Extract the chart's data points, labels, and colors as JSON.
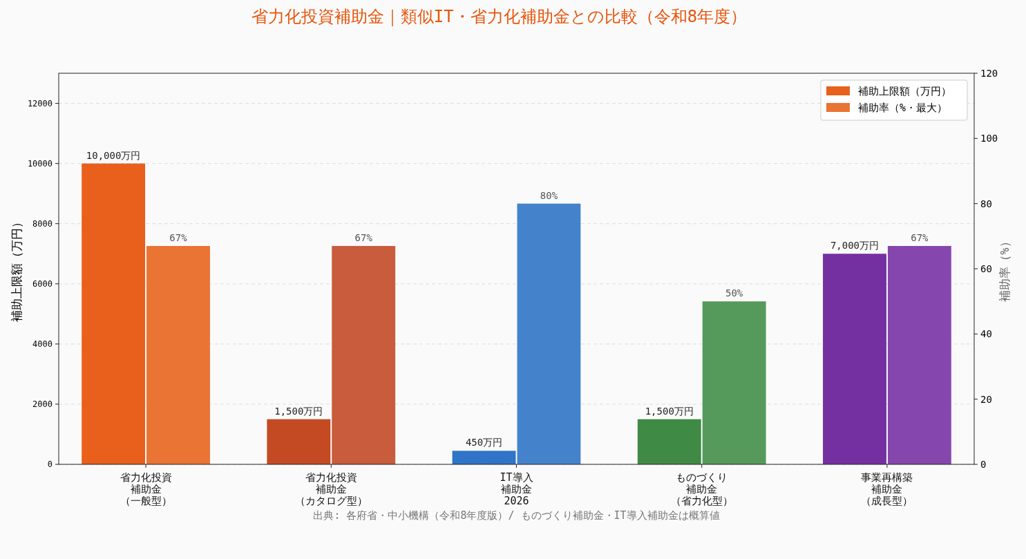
{
  "chart_data": {
    "type": "bar",
    "title": "省力化投資補助金｜類似IT・省力化補助金との比較（令和8年度）",
    "categories": [
      "省力化投資補助金（一般型）",
      "省力化投資補助金（カタログ型）",
      "IT導入補助金2026",
      "ものづくり補助金（省力化型）",
      "事業再構築補助金（成長型）"
    ],
    "series": [
      {
        "name": "補助上限額（万円）",
        "color": "#e8601c",
        "colors": [
          "#e8601c",
          "#c44a24",
          "#2f74c6",
          "#3f8a45",
          "#7430a0"
        ],
        "values": [
          10000,
          1500,
          450,
          1500,
          7000
        ],
        "value_labels": [
          "10,000万円",
          "1,500万円",
          "450万円",
          "1,500万円",
          "7,000万円"
        ]
      },
      {
        "name": "補助率（%・最大）",
        "color": "#ea7433",
        "colors": [
          "#ea7433",
          "#c95c3c",
          "#4483cc",
          "#559a5a",
          "#8547ae"
        ],
        "values": [
          67,
          67,
          80,
          50,
          67
        ],
        "value_labels": [
          "67%",
          "67%",
          "80%",
          "50%",
          "67%"
        ],
        "axis": "y2"
      }
    ],
    "ylabel": "補助上限額（万円）",
    "y2label": "補助率（%）",
    "ylim": [
      0,
      13000
    ],
    "yticks": [
      0,
      2000,
      4000,
      6000,
      8000,
      10000,
      12000
    ],
    "y2lim": [
      0,
      120
    ],
    "y2ticks": [
      0,
      20,
      40,
      60,
      80,
      100,
      120
    ],
    "grid": "y",
    "legend": "top right",
    "annotations": [
      "出典: 各府省・中小機構（令和8年度版）/ ものづくり補助金・IT導入補助金は概算値"
    ]
  }
}
